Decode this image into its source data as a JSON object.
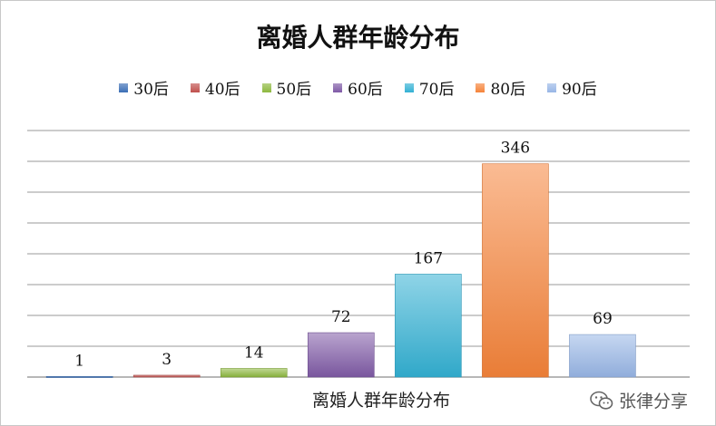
{
  "chart_data": {
    "type": "bar",
    "title": "离婚人群年龄分布",
    "xlabel": "离婚人群年龄分布",
    "ylabel": "",
    "categories": [
      "30后",
      "40后",
      "50后",
      "60后",
      "70后",
      "80后",
      "90后"
    ],
    "series": [
      {
        "name": "30后",
        "values": [
          1,
          null,
          null,
          null,
          null,
          null,
          null
        ]
      },
      {
        "name": "40后",
        "values": [
          null,
          3,
          null,
          null,
          null,
          null,
          null
        ]
      },
      {
        "name": "50后",
        "values": [
          null,
          null,
          14,
          null,
          null,
          null,
          null
        ]
      },
      {
        "name": "60后",
        "values": [
          null,
          null,
          null,
          72,
          null,
          null,
          null
        ]
      },
      {
        "name": "70后",
        "values": [
          null,
          null,
          null,
          null,
          167,
          null,
          null
        ]
      },
      {
        "name": "80后",
        "values": [
          null,
          null,
          null,
          null,
          null,
          346,
          null
        ]
      },
      {
        "name": "90后",
        "values": [
          null,
          null,
          null,
          null,
          null,
          null,
          69
        ]
      }
    ],
    "values": [
      1,
      3,
      14,
      72,
      167,
      346,
      69
    ],
    "colors": [
      "#3b6fb5",
      "#c0504d",
      "#8db83e",
      "#7f5aa6",
      "#33b1d4",
      "#f5843a",
      "#98b6e6"
    ],
    "ylim": [
      0,
      400
    ],
    "gridlines": true,
    "legend_position": "top",
    "data_labels": true
  },
  "watermark": {
    "text": "张律分享",
    "icon": "wechat-icon"
  }
}
